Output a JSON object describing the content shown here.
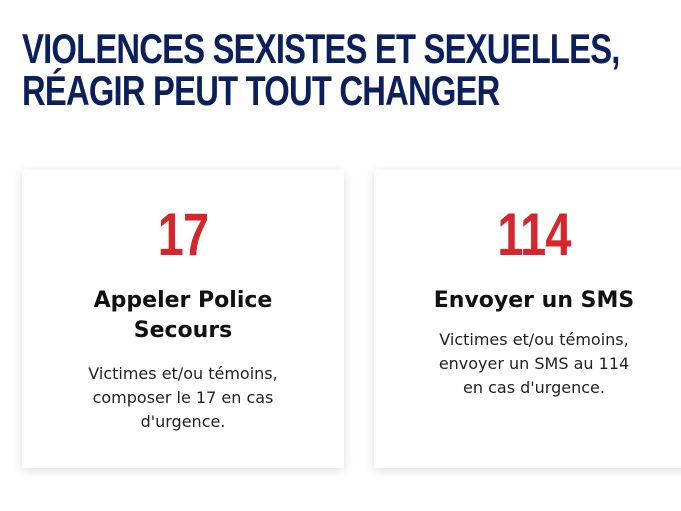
{
  "header": {
    "title_line1": "VIOLENCES SEXISTES ET SEXUELLES,",
    "title_line2": "RÉAGIR PEUT TOUT CHANGER"
  },
  "cards": [
    {
      "number": "17",
      "title": "Appeler Police Secours",
      "description": "Victimes et/ou témoins, composer le 17 en cas d'urgence."
    },
    {
      "number": "114",
      "title": "Envoyer un SMS",
      "description": "Victimes et/ou témoins, envoyer un SMS au 114 en cas d'urgence."
    }
  ],
  "colors": {
    "heading": "#0b1f5c",
    "accent": "#d4262d",
    "text": "#111111",
    "background": "#ffffff"
  }
}
